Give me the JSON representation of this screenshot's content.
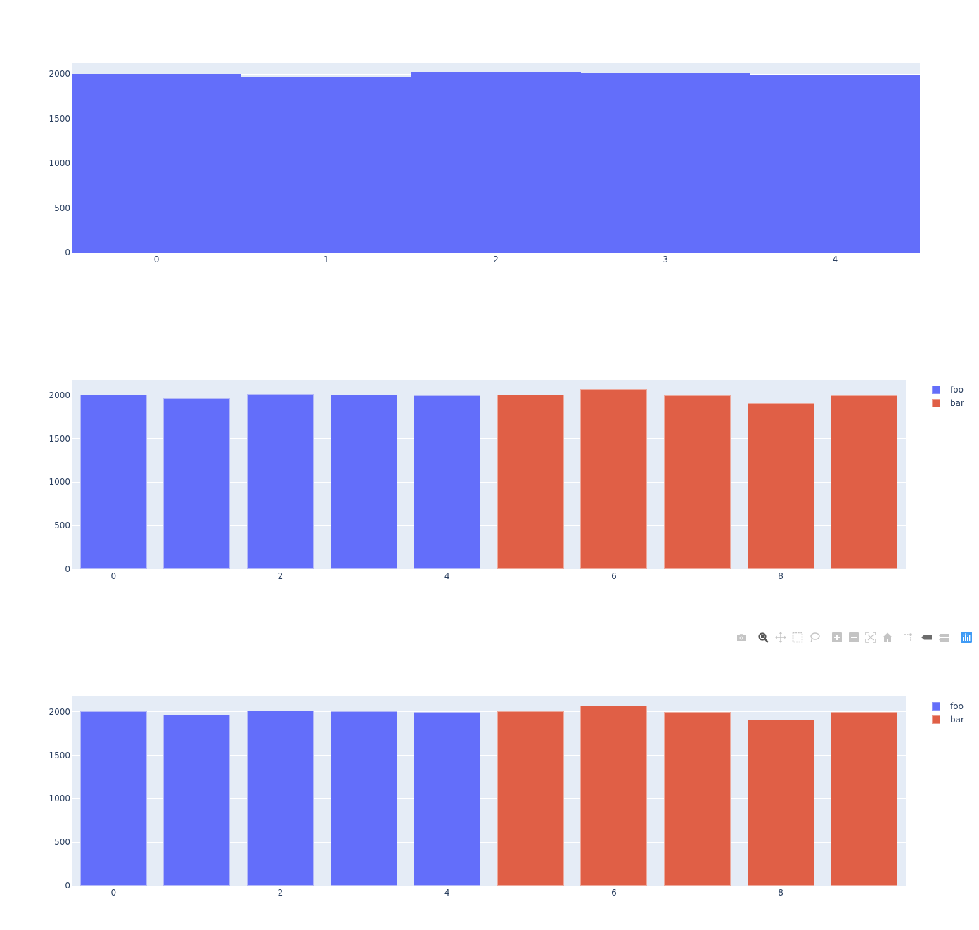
{
  "colors": {
    "foo": "#636efa",
    "bar": "#e05f46",
    "plot_bg": "#e5ecf6",
    "grid": "#ffffff",
    "text": "#2a3f5f",
    "modebar_icon": "#c4c4c4",
    "modebar_active": "#6c6c6c",
    "plotly_logo": "#3f9bf5"
  },
  "chart_data": [
    {
      "type": "bar",
      "title": "",
      "xlabel": "",
      "ylabel": "",
      "categories": [
        "0",
        "1",
        "2",
        "3",
        "4"
      ],
      "series": [
        {
          "name": "foo",
          "values": [
            2003,
            1968,
            2016,
            2008,
            1998
          ]
        }
      ],
      "bargap": 0,
      "showlegend": false,
      "ylim": [
        0,
        2122
      ],
      "yticks": [
        "0",
        "500",
        "1000",
        "1500",
        "2000"
      ],
      "xticks": [
        "0",
        "1",
        "2",
        "3",
        "4"
      ],
      "grid": true
    },
    {
      "type": "bar",
      "title": "",
      "xlabel": "",
      "ylabel": "",
      "categories": [
        "0",
        "1",
        "2",
        "3",
        "4",
        "5",
        "6",
        "7",
        "8",
        "9"
      ],
      "series": [
        {
          "name": "foo",
          "x": [
            0,
            1,
            2,
            3,
            4
          ],
          "values": [
            2006,
            1968,
            2016,
            2008,
            1998
          ]
        },
        {
          "name": "bar",
          "x": [
            5,
            6,
            7,
            8,
            9
          ],
          "values": [
            2010,
            2073,
            2000,
            1909,
            2000
          ]
        }
      ],
      "ylim": [
        0,
        2178
      ],
      "yticks": [
        "0",
        "500",
        "1000",
        "1500",
        "2000"
      ],
      "xticks": [
        "0",
        "2",
        "4",
        "6",
        "8"
      ],
      "legend": {
        "position": "right-top",
        "entries": [
          "foo",
          "bar"
        ]
      },
      "grid": true
    },
    {
      "type": "bar",
      "title": "",
      "xlabel": "",
      "ylabel": "",
      "categories": [
        "0",
        "1",
        "2",
        "3",
        "4",
        "5",
        "6",
        "7",
        "8",
        "9"
      ],
      "series": [
        {
          "name": "foo",
          "x": [
            0,
            1,
            2,
            3,
            4
          ],
          "values": [
            2006,
            1968,
            2016,
            2008,
            1998
          ]
        },
        {
          "name": "bar",
          "x": [
            5,
            6,
            7,
            8,
            9
          ],
          "values": [
            2010,
            2073,
            2000,
            1909,
            2000
          ]
        }
      ],
      "ylim": [
        0,
        2178
      ],
      "yticks": [
        "0",
        "500",
        "1000",
        "1500",
        "2000"
      ],
      "xticks": [
        "0",
        "2",
        "4",
        "6",
        "8"
      ],
      "legend": {
        "position": "right-top",
        "entries": [
          "foo",
          "bar"
        ]
      },
      "grid": true
    }
  ],
  "legend": {
    "items": [
      {
        "label": "foo"
      },
      {
        "label": "bar"
      }
    ]
  },
  "modebar": {
    "buttons": [
      {
        "name": "download-plot-as-png",
        "icon": "camera-icon",
        "active": false
      },
      {
        "name": "zoom",
        "icon": "magnifier-icon",
        "active": true
      },
      {
        "name": "pan",
        "icon": "pan-arrows-icon",
        "active": false
      },
      {
        "name": "box-select",
        "icon": "box-select-icon",
        "active": false
      },
      {
        "name": "lasso-select",
        "icon": "lasso-icon",
        "active": false
      },
      {
        "name": "zoom-in",
        "icon": "zoom-in-plus-icon",
        "active": false
      },
      {
        "name": "zoom-out",
        "icon": "zoom-out-minus-icon",
        "active": false
      },
      {
        "name": "autoscale",
        "icon": "autoscale-icon",
        "active": false
      },
      {
        "name": "reset-axes",
        "icon": "home-icon",
        "active": false
      },
      {
        "name": "toggle-spike-lines",
        "icon": "spike-lines-icon",
        "active": false
      },
      {
        "name": "show-closest-data-on-hover",
        "icon": "hover-closest-icon",
        "active": true
      },
      {
        "name": "compare-data-on-hover",
        "icon": "hover-compare-icon",
        "active": false
      },
      {
        "name": "produced-with-plotly",
        "icon": "plotly-logo-icon",
        "active": false
      }
    ]
  }
}
